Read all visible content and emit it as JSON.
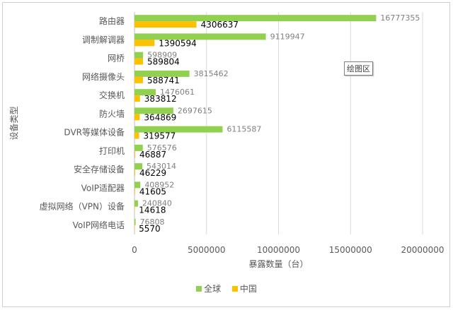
{
  "chart_data": {
    "type": "bar",
    "orientation": "horizontal",
    "categories": [
      "路由器",
      "调制解调器",
      "网桥",
      "网络摄像头",
      "交换机",
      "防火墙",
      "DVR等媒体设备",
      "打印机",
      "安全存储设备",
      "VoIP适配器",
      "虚拟网络（VPN）设备",
      "VoIP网络电话"
    ],
    "series": [
      {
        "name": "全球",
        "color": "#92d050",
        "values": [
          16777355,
          9119947,
          598909,
          3815462,
          1476061,
          2697615,
          6115587,
          576576,
          543014,
          408952,
          240840,
          76808
        ]
      },
      {
        "name": "中国",
        "color": "#ffc000",
        "values": [
          4306637,
          1390594,
          589804,
          588741,
          383812,
          364869,
          319577,
          46887,
          46229,
          41605,
          14618,
          5570
        ]
      }
    ],
    "xlabel": "暴露数量（台）",
    "ylabel": "设备类型",
    "xlim": [
      0,
      20000000
    ],
    "xticks": [
      "0",
      "5000000",
      "10000000",
      "15000000",
      "20000000"
    ],
    "grid": "vertical",
    "legend_position": "bottom"
  },
  "plot_area_tag": "绘图区"
}
